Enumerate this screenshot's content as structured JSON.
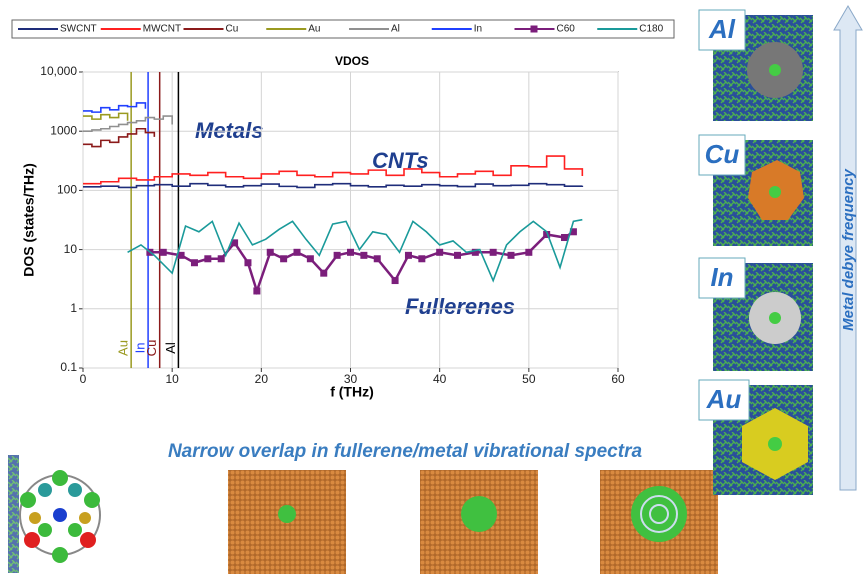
{
  "chart_data": {
    "type": "line",
    "title": "VDOS",
    "x_label": "f (THz)",
    "y_label": "DOS (states/THz)",
    "xlim": [
      0,
      60
    ],
    "xticks": [
      0,
      10,
      20,
      30,
      40,
      50,
      60
    ],
    "ylim": [
      0.1,
      10000
    ],
    "log_y": true,
    "yticks": [
      0.1,
      1,
      10,
      100,
      1000,
      {
        "value": 10000,
        "label": "10,000"
      }
    ],
    "grid": true,
    "legend": "top",
    "series": [
      {
        "name": "SWCNT",
        "color": "#1f2d7a",
        "step": true,
        "x": [
          0,
          2,
          4,
          6,
          8,
          10,
          12,
          14,
          16,
          18,
          20,
          22,
          24,
          26,
          28,
          30,
          32,
          34,
          36,
          38,
          40,
          42,
          44,
          46,
          48,
          50,
          52,
          54,
          56
        ],
        "values": [
          115,
          118,
          112,
          120,
          125,
          118,
          130,
          122,
          115,
          120,
          128,
          117,
          112,
          125,
          130,
          120,
          115,
          122,
          118,
          125,
          120,
          116,
          128,
          120,
          122,
          130,
          125,
          118,
          120
        ]
      },
      {
        "name": "MWCNT",
        "color": "#ff2020",
        "step": true,
        "x": [
          0,
          2,
          4,
          6,
          8,
          10,
          12,
          14,
          16,
          18,
          20,
          22,
          24,
          26,
          28,
          30,
          32,
          34,
          36,
          38,
          40,
          42,
          44,
          46,
          48,
          50,
          52,
          54,
          56
        ],
        "values": [
          130,
          140,
          160,
          150,
          170,
          190,
          180,
          200,
          170,
          160,
          190,
          210,
          180,
          170,
          200,
          190,
          220,
          180,
          230,
          200,
          170,
          190,
          210,
          180,
          260,
          250,
          380,
          230,
          175
        ]
      },
      {
        "name": "Cu",
        "color": "#8b1a1a",
        "step": true,
        "x": [
          0,
          1,
          2,
          3,
          4,
          5,
          6,
          7,
          8
        ],
        "values": [
          600,
          550,
          700,
          650,
          800,
          900,
          1100,
          950,
          800
        ]
      },
      {
        "name": "Au",
        "color": "#9a9a20",
        "step": true,
        "x": [
          0,
          1,
          2,
          3,
          4,
          5
        ],
        "values": [
          1800,
          1600,
          1900,
          1700,
          2000,
          1500
        ]
      },
      {
        "name": "Al",
        "color": "#909090",
        "step": true,
        "x": [
          0,
          1,
          2,
          3,
          4,
          5,
          6,
          7,
          8,
          9,
          10
        ],
        "values": [
          1000,
          1050,
          1100,
          1200,
          1300,
          1400,
          1500,
          1700,
          1600,
          1800,
          1300
        ]
      },
      {
        "name": "In",
        "color": "#2040ff",
        "step": true,
        "x": [
          0,
          1,
          2,
          3,
          4,
          5,
          6,
          7
        ],
        "values": [
          2200,
          2100,
          2500,
          2300,
          2700,
          2600,
          3000,
          2400
        ]
      },
      {
        "name": "C60",
        "color": "#7b1e7b",
        "marker": "square",
        "x": [
          7.5,
          9,
          11,
          12.5,
          14,
          15.5,
          17,
          18.5,
          19.5,
          21,
          22.5,
          24,
          25.5,
          27,
          28.5,
          30,
          31.5,
          33,
          35,
          36.5,
          38,
          40,
          42,
          44,
          46,
          48,
          50,
          52,
          54,
          55
        ],
        "values": [
          9,
          9,
          8,
          6,
          7,
          7,
          13,
          6,
          2,
          9,
          7,
          9,
          7,
          4,
          8,
          9,
          8,
          7,
          3,
          8,
          7,
          9,
          8,
          9,
          9,
          8,
          9,
          18,
          16,
          20
        ]
      },
      {
        "name": "C180",
        "color": "#1a9a9a",
        "x": [
          5,
          6.5,
          8,
          10,
          11.5,
          13,
          14.5,
          16,
          17.5,
          19,
          20.5,
          22,
          23.5,
          25,
          26.5,
          28,
          29.5,
          31,
          32.5,
          34,
          35.5,
          37,
          38.5,
          40,
          41.5,
          43,
          44.5,
          46,
          47.5,
          49,
          50.5,
          52,
          53.5,
          55,
          56
        ],
        "values": [
          9,
          12,
          8,
          4,
          25,
          20,
          30,
          8,
          28,
          12,
          15,
          22,
          30,
          15,
          8,
          27,
          30,
          10,
          20,
          18,
          9,
          30,
          20,
          12,
          14,
          9,
          10,
          3,
          12,
          20,
          30,
          20,
          5,
          30,
          32
        ]
      }
    ],
    "reference_lines": [
      {
        "label": "Au",
        "value": 5.4,
        "color": "#9a9a20"
      },
      {
        "label": "In",
        "value": 7.3,
        "color": "#2040ff"
      },
      {
        "label": "Cu",
        "value": 8.6,
        "color": "#8b1a1a"
      },
      {
        "label": "Al",
        "value": 10.7,
        "color": "#000000"
      }
    ],
    "annotations": [
      "Metals",
      "CNTs",
      "Fullerenes"
    ]
  },
  "caption": "Narrow overlap in fullerene/metal vibrational spectra",
  "side_panel": {
    "labels": [
      "Al",
      "Cu",
      "In",
      "Au"
    ],
    "arrow_label": "Metal debye frequency"
  }
}
